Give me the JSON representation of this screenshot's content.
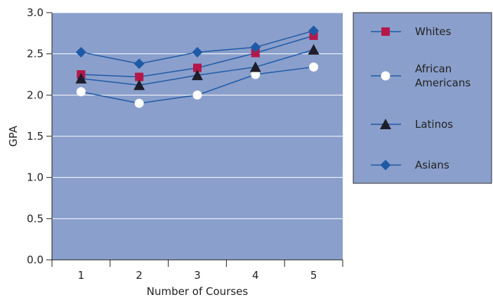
{
  "chart_data": {
    "type": "line",
    "title": "",
    "xlabel": "Number of Courses",
    "ylabel": "GPA",
    "x": [
      1,
      2,
      3,
      4,
      5
    ],
    "xlim": [
      0.5,
      5.5
    ],
    "ylim": [
      0,
      3
    ],
    "yticks": [
      "0.0",
      "0.5",
      "1.0",
      "1.5",
      "2.0",
      "2.5",
      "3.0"
    ],
    "xticks": [
      "1",
      "2",
      "3",
      "4",
      "5"
    ],
    "grid": true,
    "legend_position": "right",
    "colors": {
      "plot_bg": "#8a9fcb",
      "line": "#1f5aa6",
      "grid": "#ffffff"
    },
    "series": [
      {
        "name": "Whites",
        "marker": "square",
        "color": "#b5174a",
        "values": [
          2.25,
          2.22,
          2.33,
          2.51,
          2.72
        ]
      },
      {
        "name": "African Americans",
        "name_lines": [
          "African",
          "Americans"
        ],
        "marker": "circle",
        "color": "#ffffff",
        "values": [
          2.04,
          1.9,
          2.0,
          2.25,
          2.34
        ]
      },
      {
        "name": "Latinos",
        "marker": "triangle",
        "color": "#1e1e2a",
        "values": [
          2.2,
          2.12,
          2.24,
          2.34,
          2.55
        ]
      },
      {
        "name": "Asians",
        "marker": "diamond",
        "color": "#1f5aa6",
        "values": [
          2.52,
          2.38,
          2.52,
          2.58,
          2.78
        ]
      }
    ]
  }
}
